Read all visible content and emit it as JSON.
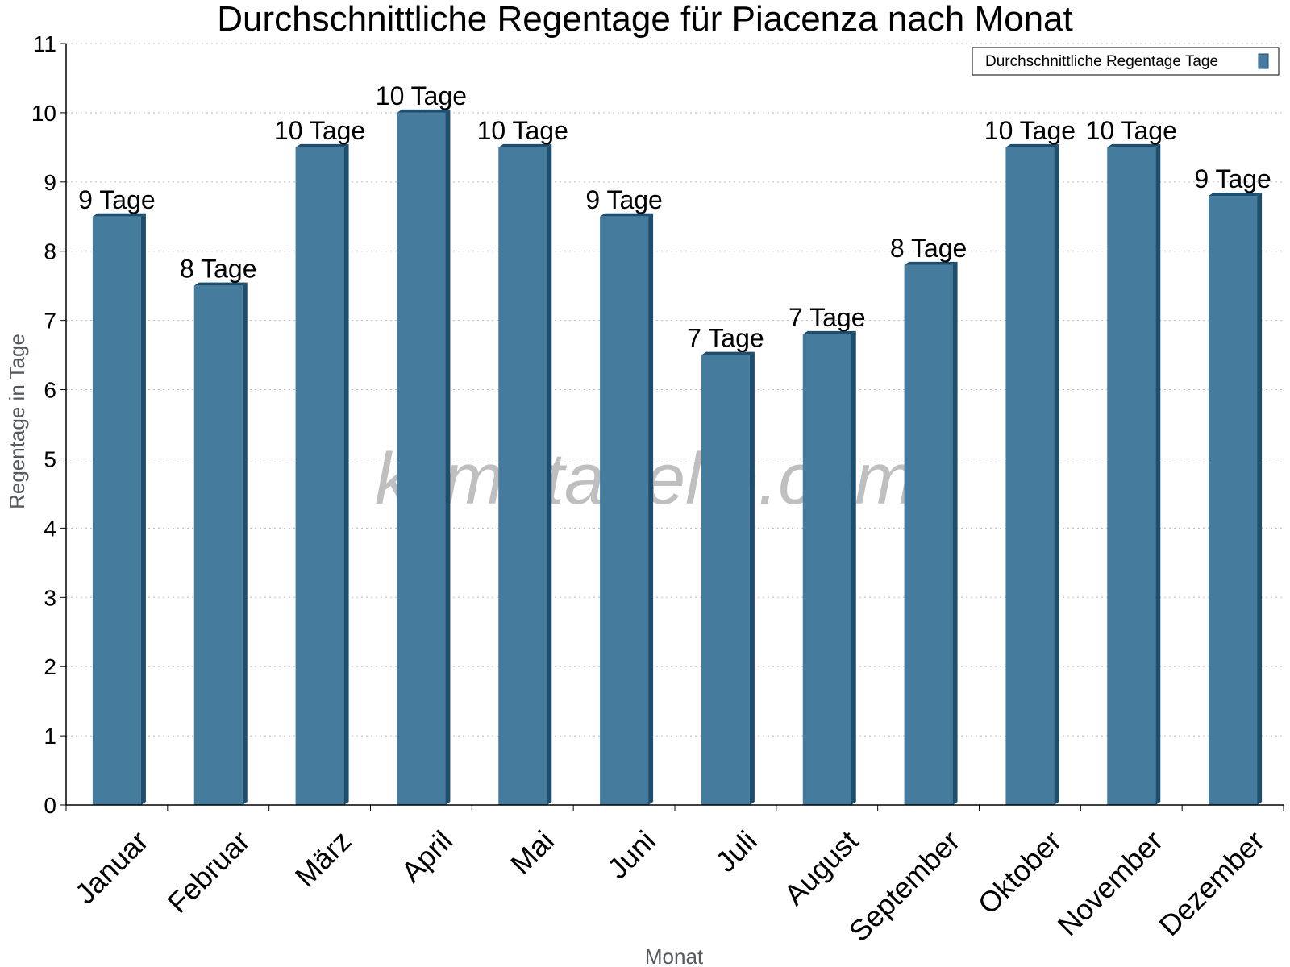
{
  "chart_data": {
    "type": "bar",
    "title": "Durchschnittliche Regentage für Piacenza nach Monat",
    "xlabel": "Monat",
    "ylabel": "Regentage in Tage",
    "ylim": [
      0,
      11
    ],
    "yticks": [
      0,
      1,
      2,
      3,
      4,
      5,
      6,
      7,
      8,
      9,
      10,
      11
    ],
    "grid": true,
    "legend_position": "top-right",
    "categories": [
      "Januar",
      "Februar",
      "März",
      "April",
      "Mai",
      "Juni",
      "Juli",
      "August",
      "September",
      "Oktober",
      "November",
      "Dezember"
    ],
    "series": [
      {
        "name": "Durchschnittliche Regentage Tage",
        "values": [
          8.5,
          7.5,
          9.5,
          10,
          9.5,
          8.5,
          6.5,
          6.8,
          7.8,
          9.5,
          9.5,
          8.8
        ],
        "labels": [
          "9 Tage",
          "8 Tage",
          "10 Tage",
          "10 Tage",
          "10 Tage",
          "9 Tage",
          "7 Tage",
          "7 Tage",
          "8 Tage",
          "10 Tage",
          "10 Tage",
          "9 Tage"
        ],
        "color": "#457b9d",
        "side_color": "#1d4e6e"
      }
    ]
  },
  "watermark": "klimatabelle.com"
}
